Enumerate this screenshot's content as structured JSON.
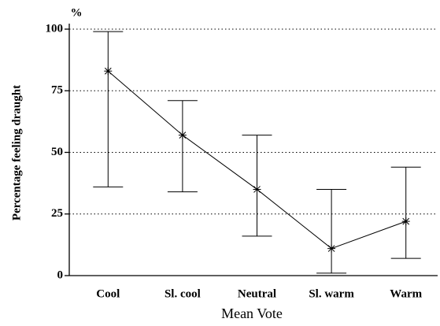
{
  "chart_data": {
    "type": "line",
    "ylabel": "Percentage feeling draught",
    "yunit": "%",
    "xlabel": "Mean Vote",
    "categories": [
      "Cool",
      "Sl. cool",
      "Neutral",
      "Sl. warm",
      "Warm"
    ],
    "series": [
      {
        "color": "#000000",
        "values": [
          83,
          57,
          35,
          11,
          22
        ],
        "lower": [
          36,
          34,
          16,
          1,
          7
        ],
        "upper": [
          99,
          71,
          57,
          35,
          44
        ]
      }
    ],
    "ylim": [
      0,
      100
    ],
    "yticks": [
      0,
      25,
      50,
      75,
      100
    ],
    "grid": true
  }
}
